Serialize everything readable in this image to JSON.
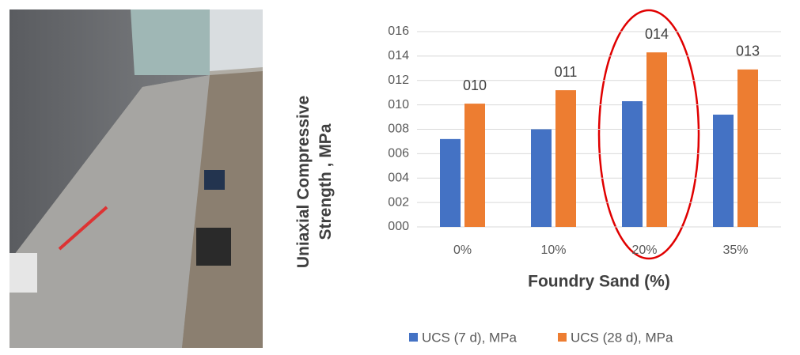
{
  "chart_data": {
    "type": "bar",
    "y_label": "Uniaxial Compressive Strength , MPa",
    "x_label": "Foundry Sand (%)",
    "categories": [
      "0%",
      "10%",
      "20%",
      "35%"
    ],
    "series": [
      {
        "name": "UCS (7 d), MPa",
        "color": "#4472c4",
        "values": [
          7.2,
          8.0,
          10.3,
          9.2
        ]
      },
      {
        "name": "UCS (28 d), MPa",
        "color": "#ed7d31",
        "values": [
          10.1,
          11.2,
          14.3,
          12.9
        ],
        "value_labels": [
          "010",
          "011",
          "014",
          "013"
        ]
      }
    ],
    "ylim": [
      0,
      16
    ],
    "yticks": [
      {
        "value": 0,
        "label": "000"
      },
      {
        "value": 2,
        "label": "002"
      },
      {
        "value": 4,
        "label": "004"
      },
      {
        "value": 6,
        "label": "006"
      },
      {
        "value": 8,
        "label": "008"
      },
      {
        "value": 10,
        "label": "010"
      },
      {
        "value": 12,
        "label": "012"
      },
      {
        "value": 14,
        "label": "014"
      },
      {
        "value": 16,
        "label": "016"
      }
    ],
    "grid": true,
    "legend": "bottom"
  }
}
